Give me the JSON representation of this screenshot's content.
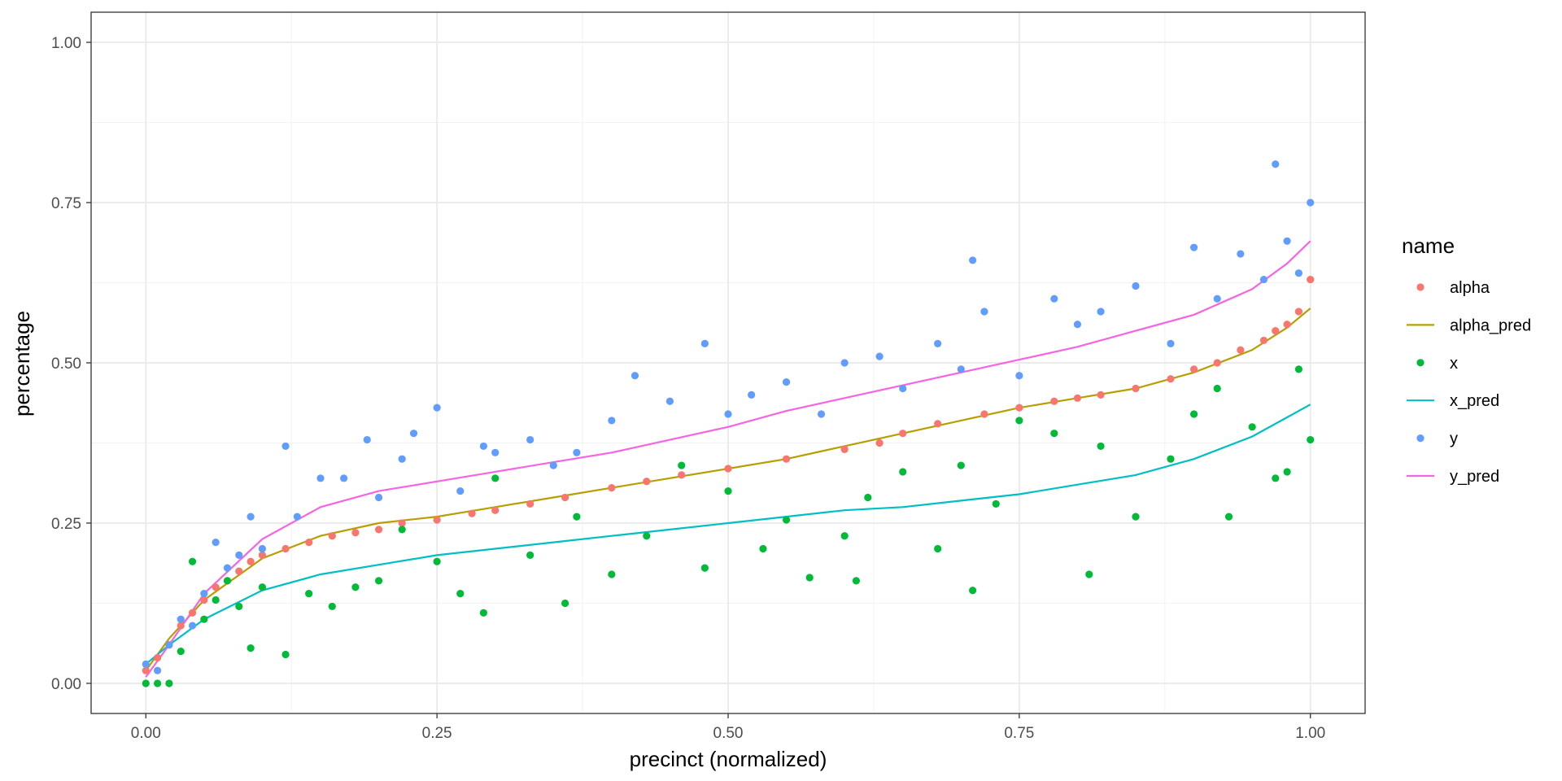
{
  "chart_data": {
    "type": "scatter",
    "xlabel": "precinct (normalized)",
    "ylabel": "percentage",
    "xlim": [
      -0.047,
      1.047
    ],
    "ylim": [
      -0.047,
      1.047
    ],
    "x_ticks": [
      0,
      0.25,
      0.5,
      0.75,
      1
    ],
    "x_tick_labels": [
      "0.00",
      "0.25",
      "0.50",
      "0.75",
      "1.00"
    ],
    "y_ticks": [
      0,
      0.25,
      0.5,
      0.75,
      1
    ],
    "y_tick_labels": [
      "0.00",
      "0.25",
      "0.50",
      "0.75",
      "1.00"
    ],
    "grid": true,
    "legend": {
      "title": "name",
      "position": "right",
      "entries": [
        {
          "label": "alpha",
          "kind": "point",
          "color": "#F8766D"
        },
        {
          "label": "alpha_pred",
          "kind": "line",
          "color": "#B79F00"
        },
        {
          "label": "x",
          "kind": "point",
          "color": "#00BA38"
        },
        {
          "label": "x_pred",
          "kind": "line",
          "color": "#00BFC4"
        },
        {
          "label": "y",
          "kind": "point",
          "color": "#619CFF"
        },
        {
          "label": "y_pred",
          "kind": "line",
          "color": "#F564E3"
        }
      ]
    },
    "series": [
      {
        "name": "alpha",
        "kind": "point",
        "color": "#F8766D",
        "x": [
          0.0,
          0.01,
          0.02,
          0.03,
          0.04,
          0.05,
          0.06,
          0.07,
          0.08,
          0.09,
          0.1,
          0.12,
          0.14,
          0.16,
          0.18,
          0.2,
          0.22,
          0.25,
          0.28,
          0.3,
          0.33,
          0.36,
          0.4,
          0.43,
          0.46,
          0.5,
          0.55,
          0.6,
          0.63,
          0.65,
          0.68,
          0.72,
          0.75,
          0.78,
          0.8,
          0.82,
          0.85,
          0.88,
          0.9,
          0.92,
          0.94,
          0.96,
          0.97,
          0.98,
          0.99,
          1.0
        ],
        "y": [
          0.02,
          0.04,
          0.06,
          0.09,
          0.11,
          0.13,
          0.15,
          0.16,
          0.175,
          0.19,
          0.2,
          0.21,
          0.22,
          0.23,
          0.235,
          0.24,
          0.25,
          0.255,
          0.265,
          0.27,
          0.28,
          0.29,
          0.305,
          0.315,
          0.325,
          0.335,
          0.35,
          0.365,
          0.375,
          0.39,
          0.405,
          0.42,
          0.43,
          0.44,
          0.445,
          0.45,
          0.46,
          0.475,
          0.49,
          0.5,
          0.52,
          0.535,
          0.55,
          0.56,
          0.58,
          0.63
        ]
      },
      {
        "name": "alpha_pred",
        "kind": "line",
        "color": "#B79F00",
        "x": [
          0.0,
          0.02,
          0.05,
          0.1,
          0.15,
          0.2,
          0.25,
          0.3,
          0.35,
          0.4,
          0.45,
          0.5,
          0.55,
          0.6,
          0.65,
          0.7,
          0.75,
          0.8,
          0.85,
          0.9,
          0.95,
          0.98,
          1.0
        ],
        "y": [
          0.02,
          0.07,
          0.13,
          0.195,
          0.23,
          0.25,
          0.26,
          0.275,
          0.29,
          0.305,
          0.32,
          0.335,
          0.35,
          0.37,
          0.39,
          0.41,
          0.43,
          0.445,
          0.46,
          0.485,
          0.52,
          0.555,
          0.585
        ]
      },
      {
        "name": "x",
        "kind": "point",
        "color": "#00BA38",
        "x": [
          0.0,
          0.01,
          0.02,
          0.03,
          0.04,
          0.05,
          0.06,
          0.07,
          0.08,
          0.09,
          0.1,
          0.12,
          0.14,
          0.16,
          0.18,
          0.2,
          0.22,
          0.25,
          0.27,
          0.29,
          0.3,
          0.33,
          0.36,
          0.37,
          0.4,
          0.43,
          0.46,
          0.48,
          0.5,
          0.53,
          0.55,
          0.57,
          0.6,
          0.61,
          0.62,
          0.65,
          0.68,
          0.7,
          0.71,
          0.73,
          0.75,
          0.78,
          0.81,
          0.82,
          0.85,
          0.88,
          0.9,
          0.92,
          0.93,
          0.95,
          0.97,
          0.98,
          0.99,
          1.0
        ],
        "x_note": "",
        "y": [
          0.0,
          0.0,
          0.0,
          0.05,
          0.19,
          0.1,
          0.13,
          0.16,
          0.12,
          0.055,
          0.15,
          0.045,
          0.14,
          0.12,
          0.15,
          0.16,
          0.24,
          0.19,
          0.14,
          0.11,
          0.32,
          0.2,
          0.125,
          0.26,
          0.17,
          0.23,
          0.34,
          0.18,
          0.3,
          0.21,
          0.255,
          0.165,
          0.23,
          0.16,
          0.29,
          0.33,
          0.21,
          0.34,
          0.145,
          0.28,
          0.41,
          0.39,
          0.17,
          0.37,
          0.26,
          0.35,
          0.42,
          0.46,
          0.26,
          0.4,
          0.32,
          0.33,
          0.49,
          0.38
        ]
      },
      {
        "name": "x_pred",
        "kind": "line",
        "color": "#00BFC4",
        "x": [
          0.0,
          0.02,
          0.05,
          0.1,
          0.15,
          0.2,
          0.25,
          0.3,
          0.35,
          0.4,
          0.45,
          0.5,
          0.55,
          0.6,
          0.65,
          0.7,
          0.75,
          0.8,
          0.85,
          0.9,
          0.95,
          0.98,
          1.0
        ],
        "y": [
          0.03,
          0.06,
          0.1,
          0.145,
          0.17,
          0.185,
          0.2,
          0.21,
          0.22,
          0.23,
          0.24,
          0.25,
          0.26,
          0.27,
          0.275,
          0.285,
          0.295,
          0.31,
          0.325,
          0.35,
          0.385,
          0.415,
          0.435
        ]
      },
      {
        "name": "y",
        "kind": "point",
        "color": "#619CFF",
        "x": [
          0.0,
          0.01,
          0.02,
          0.03,
          0.04,
          0.05,
          0.06,
          0.07,
          0.08,
          0.09,
          0.1,
          0.12,
          0.13,
          0.15,
          0.17,
          0.19,
          0.2,
          0.22,
          0.23,
          0.25,
          0.27,
          0.29,
          0.3,
          0.33,
          0.35,
          0.37,
          0.4,
          0.42,
          0.45,
          0.48,
          0.5,
          0.52,
          0.55,
          0.58,
          0.6,
          0.63,
          0.65,
          0.68,
          0.7,
          0.71,
          0.72,
          0.75,
          0.78,
          0.8,
          0.82,
          0.85,
          0.88,
          0.9,
          0.92,
          0.94,
          0.96,
          0.97,
          0.98,
          0.99,
          1.0
        ],
        "y": [
          0.03,
          0.02,
          0.06,
          0.1,
          0.09,
          0.14,
          0.22,
          0.18,
          0.2,
          0.26,
          0.21,
          0.37,
          0.26,
          0.32,
          0.32,
          0.38,
          0.29,
          0.35,
          0.39,
          0.43,
          0.3,
          0.37,
          0.36,
          0.38,
          0.34,
          0.36,
          0.41,
          0.48,
          0.44,
          0.53,
          0.42,
          0.45,
          0.47,
          0.42,
          0.5,
          0.51,
          0.46,
          0.53,
          0.49,
          0.66,
          0.58,
          0.48,
          0.6,
          0.56,
          0.58,
          0.62,
          0.53,
          0.68,
          0.6,
          0.67,
          0.63,
          0.81,
          0.69,
          0.64,
          0.75
        ]
      },
      {
        "name": "y_pred",
        "kind": "line",
        "color": "#F564E3",
        "x": [
          0.0,
          0.02,
          0.05,
          0.1,
          0.15,
          0.2,
          0.25,
          0.3,
          0.35,
          0.4,
          0.45,
          0.5,
          0.55,
          0.6,
          0.65,
          0.7,
          0.75,
          0.8,
          0.85,
          0.9,
          0.95,
          0.98,
          1.0
        ],
        "y": [
          0.01,
          0.06,
          0.14,
          0.225,
          0.275,
          0.3,
          0.315,
          0.33,
          0.345,
          0.36,
          0.38,
          0.4,
          0.425,
          0.445,
          0.465,
          0.485,
          0.505,
          0.525,
          0.55,
          0.575,
          0.615,
          0.655,
          0.69
        ]
      }
    ]
  }
}
